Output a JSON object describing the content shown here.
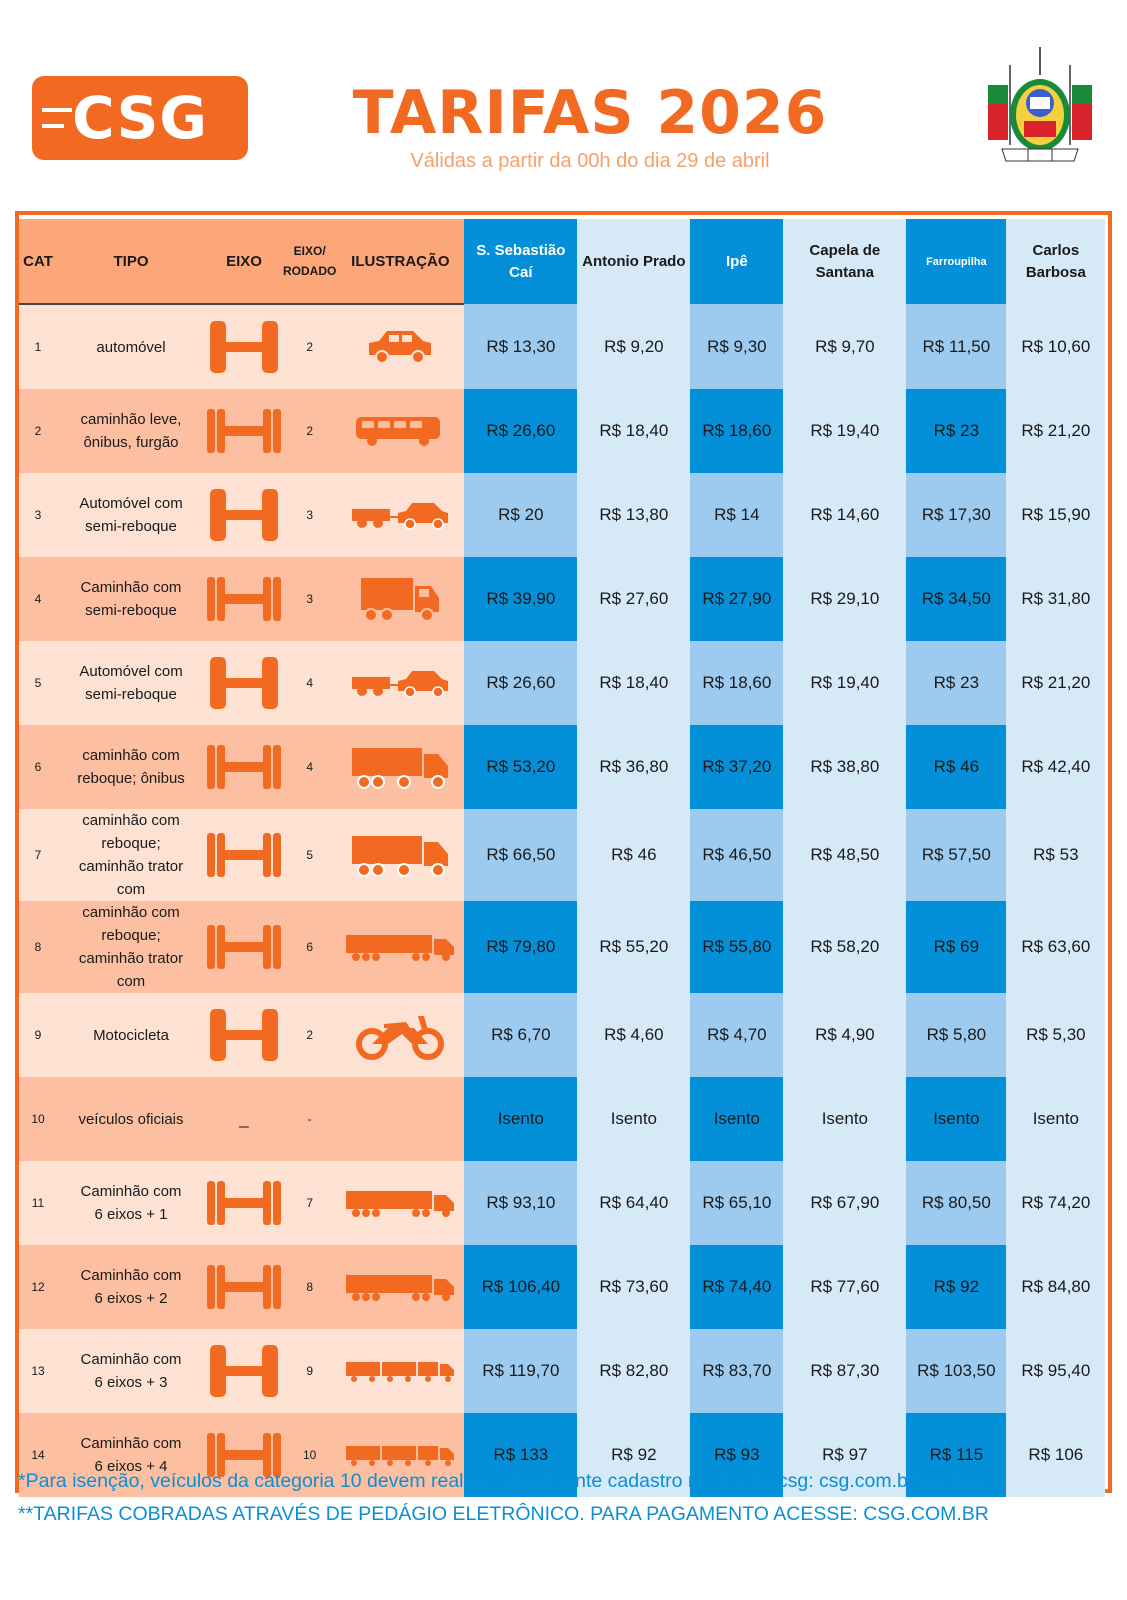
{
  "header": {
    "logo_text": "CSG",
    "title": "TARIFAS 2026",
    "subtitle": "Válidas a partir da 00h do dia 29 de abril",
    "crest_label": "coat-of-arms"
  },
  "table": {
    "headers": {
      "cat": "CAT",
      "tipo": "TIPO",
      "eixo": "EIXO",
      "rodado": "EIXO/ RODADO",
      "ilustracao": "ILUSTRAÇÃO",
      "plazas": [
        "S. Sebastião Caí",
        "Antonio Prado",
        "Ipê",
        "Capela de Santana",
        "Farroupilha",
        "Carlos Barbosa"
      ]
    },
    "rows": [
      {
        "cat": "1",
        "tipo": "automóvel",
        "axle": "single",
        "rodado": "2",
        "icon": "car-icon",
        "prices": [
          "R$ 13,30",
          "R$ 9,20",
          "R$ 9,30",
          "R$ 9,70",
          "R$ 11,50",
          "R$ 10,60"
        ]
      },
      {
        "cat": "2",
        "tipo": "caminhão leve, ônibus, furgão",
        "axle": "double",
        "rodado": "2",
        "icon": "bus-icon",
        "prices": [
          "R$ 26,60",
          "R$ 18,40",
          "R$ 18,60",
          "R$ 19,40",
          "R$ 23",
          "R$ 21,20"
        ]
      },
      {
        "cat": "3",
        "tipo": "Automóvel com semi-reboque",
        "axle": "single",
        "rodado": "3",
        "icon": "car-trailer-icon",
        "prices": [
          "R$ 20",
          "R$ 13,80",
          "R$ 14",
          "R$ 14,60",
          "R$ 17,30",
          "R$ 15,90"
        ]
      },
      {
        "cat": "4",
        "tipo": "Caminhão com semi-reboque",
        "axle": "double",
        "rodado": "3",
        "icon": "truck-icon",
        "prices": [
          "R$ 39,90",
          "R$ 27,60",
          "R$ 27,90",
          "R$ 29,10",
          "R$ 34,50",
          "R$ 31,80"
        ]
      },
      {
        "cat": "5",
        "tipo": "Automóvel com semi-reboque",
        "axle": "single",
        "rodado": "4",
        "icon": "car-trailer-icon",
        "prices": [
          "R$ 26,60",
          "R$ 18,40",
          "R$ 18,60",
          "R$ 19,40",
          "R$ 23",
          "R$ 21,20"
        ]
      },
      {
        "cat": "6",
        "tipo": "caminhão com reboque; ônibus",
        "axle": "double",
        "rodado": "4",
        "icon": "truck-trailer-icon",
        "prices": [
          "R$ 53,20",
          "R$ 36,80",
          "R$ 37,20",
          "R$ 38,80",
          "R$ 46",
          "R$ 42,40"
        ]
      },
      {
        "cat": "7",
        "tipo": "caminhão com reboque; caminhão trator com",
        "axle": "double",
        "rodado": "5",
        "icon": "truck-trailer-icon",
        "prices": [
          "R$ 66,50",
          "R$ 46",
          "R$ 46,50",
          "R$ 48,50",
          "R$ 57,50",
          "R$ 53"
        ]
      },
      {
        "cat": "8",
        "tipo": "caminhão com reboque; caminhão trator com",
        "axle": "double",
        "rodado": "6",
        "icon": "semi-truck-icon",
        "prices": [
          "R$ 79,80",
          "R$ 55,20",
          "R$ 55,80",
          "R$ 58,20",
          "R$ 69",
          "R$ 63,60"
        ]
      },
      {
        "cat": "9",
        "tipo": "Motocicleta",
        "axle": "single",
        "rodado": "2",
        "icon": "motorcycle-icon",
        "prices": [
          "R$ 6,70",
          "R$ 4,60",
          "R$ 4,70",
          "R$ 4,90",
          "R$ 5,80",
          "R$ 5,30"
        ]
      },
      {
        "cat": "10",
        "tipo": "veículos oficiais",
        "axle": "none",
        "axle_text": "_",
        "rodado": "-",
        "icon": "none",
        "prices": [
          "Isento",
          "Isento",
          "Isento",
          "Isento",
          "Isento",
          "Isento"
        ]
      },
      {
        "cat": "11",
        "tipo": "Caminhão com 6 eixos + 1",
        "axle": "double",
        "rodado": "7",
        "icon": "semi-truck-icon",
        "prices": [
          "R$ 93,10",
          "R$ 64,40",
          "R$ 65,10",
          "R$ 67,90",
          "R$ 80,50",
          "R$ 74,20"
        ]
      },
      {
        "cat": "12",
        "tipo": "Caminhão com 6 eixos + 2",
        "axle": "double",
        "rodado": "8",
        "icon": "semi-truck-icon",
        "prices": [
          "R$ 106,40",
          "R$ 73,60",
          "R$ 74,40",
          "R$ 77,60",
          "R$ 92",
          "R$ 84,80"
        ]
      },
      {
        "cat": "13",
        "tipo": "Caminhão com 6 eixos + 3",
        "axle": "single",
        "rodado": "9",
        "icon": "road-train-icon",
        "prices": [
          "R$ 119,70",
          "R$ 82,80",
          "R$ 83,70",
          "R$ 87,30",
          "R$ 103,50",
          "R$ 95,40"
        ]
      },
      {
        "cat": "14",
        "tipo": "Caminhão com 6 eixos + 4",
        "axle": "double",
        "rodado": "10",
        "icon": "road-train-icon",
        "prices": [
          "R$ 133",
          "R$ 92",
          "R$ 93",
          "R$ 97",
          "R$ 115",
          "R$ 106"
        ]
      }
    ]
  },
  "footnotes": [
    "*Para isenção, veículos da categoria 10 devem realizar anualmente cadastro no site da csg: csg.com.br/isentos",
    "**TARIFAS COBRADAS ATRAVÉS DE PEDÁGIO ELETRÔNICO. PARA PAGAMENTO ACESSE: CSG.COM.BR"
  ],
  "colors": {
    "brand_orange": "#f26a21",
    "header_salmon": "#fca77a",
    "row_light": "#fde1d3",
    "row_dark": "#fcbfa1",
    "blue_dark": "#0390d9",
    "blue_mid": "#9dcbf0",
    "blue_light": "#d6e9f7",
    "footnote_blue": "#0a8fd6"
  }
}
